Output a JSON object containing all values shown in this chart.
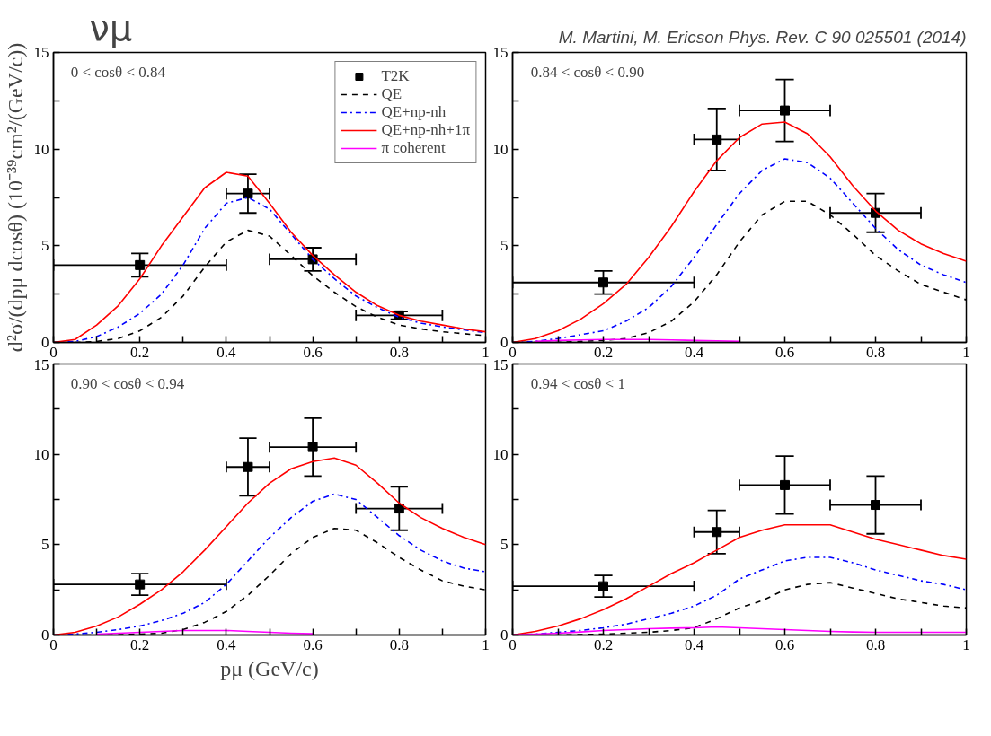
{
  "chart_data": [
    {
      "type": "line",
      "title": "νμ",
      "ylabel": "d²σ/(dpμ dcosθ) (10⁻³⁹cm²/(GeV/c))",
      "annotations": [
        "0 < cosθ < 0.84"
      ],
      "legend": "top right",
      "grid": false,
      "xlim": [
        0,
        1
      ],
      "ylim": [
        0,
        15
      ],
      "xticks": [
        0,
        {
          "value": 0.1,
          "label": null
        },
        0.2,
        {
          "value": 0.3,
          "label": null
        },
        0.4,
        {
          "value": 0.5,
          "label": null
        },
        0.6,
        {
          "value": 0.7,
          "label": null
        },
        0.8,
        {
          "value": 0.9,
          "label": null
        },
        1
      ],
      "yticks": [
        0,
        {
          "value": 2.5,
          "label": null
        },
        5,
        {
          "value": 7.5,
          "label": null
        },
        10,
        {
          "value": 12.5,
          "label": null
        },
        15
      ],
      "x": [
        0,
        0.05,
        0.1,
        0.15,
        0.2,
        0.25,
        0.3,
        0.35,
        0.4,
        0.45,
        0.5,
        0.55,
        0.6,
        0.65,
        0.7,
        0.75,
        0.8,
        0.85,
        0.9,
        0.95,
        1.0
      ],
      "series": [
        {
          "name": "T2K",
          "type": "scatter",
          "marker": "square",
          "color": "#000000",
          "x": [
            0.2,
            0.45,
            0.6,
            0.8
          ],
          "values": [
            4.0,
            7.7,
            4.3,
            1.4
          ],
          "errors": [
            0.6,
            1.0,
            0.6,
            0.2
          ],
          "xerrors": [
            [
              0,
              0.4
            ],
            [
              0.4,
              0.5
            ],
            [
              0.5,
              0.7
            ],
            [
              0.7,
              0.9
            ]
          ]
        },
        {
          "name": "QE",
          "type": "line",
          "line_style": "dashed",
          "color": "#000000",
          "values": [
            0,
            0,
            0.05,
            0.2,
            0.6,
            1.3,
            2.4,
            3.9,
            5.2,
            5.8,
            5.5,
            4.5,
            3.45,
            2.6,
            1.85,
            1.3,
            0.9,
            0.7,
            0.55,
            0.45,
            0.35
          ]
        },
        {
          "name": "QE+np-nh",
          "type": "line",
          "line_style": "dashdot",
          "color": "#0000ff",
          "values": [
            0,
            0.05,
            0.3,
            0.8,
            1.5,
            2.5,
            4.0,
            5.9,
            7.2,
            7.5,
            6.9,
            5.6,
            4.3,
            3.3,
            2.4,
            1.8,
            1.3,
            1.0,
            0.8,
            0.65,
            0.5
          ]
        },
        {
          "name": "QE+np-nh+1π",
          "type": "line",
          "line_style": "solid",
          "color": "#ff0000",
          "values": [
            0,
            0.15,
            0.9,
            1.9,
            3.3,
            5.0,
            6.5,
            8.0,
            8.8,
            8.6,
            7.2,
            5.7,
            4.5,
            3.5,
            2.6,
            1.9,
            1.4,
            1.1,
            0.9,
            0.7,
            0.55
          ]
        },
        {
          "name": "π coherent",
          "line_style": "solid",
          "color": "#ff00ff",
          "values": [
            null,
            null,
            null,
            null,
            null,
            null,
            null,
            null,
            null,
            null,
            null,
            null,
            null,
            null,
            null,
            null,
            null,
            null,
            null,
            null,
            null
          ]
        }
      ]
    },
    {
      "type": "line",
      "annotations": [
        "0.84 < cosθ < 0.90",
        "M. Martini, M. Ericson Phys. Rev. C 90 025501 (2014)"
      ],
      "grid": false,
      "xlim": [
        0,
        1
      ],
      "ylim": [
        0,
        15
      ],
      "xticks": [
        0,
        {
          "value": 0.1,
          "label": null
        },
        0.2,
        {
          "value": 0.3,
          "label": null
        },
        0.4,
        {
          "value": 0.5,
          "label": null
        },
        0.6,
        {
          "value": 0.7,
          "label": null
        },
        0.8,
        {
          "value": 0.9,
          "label": null
        },
        1
      ],
      "yticks": [
        0,
        {
          "value": 2.5,
          "label": null
        },
        5,
        {
          "value": 7.5,
          "label": null
        },
        10,
        {
          "value": 12.5,
          "label": null
        },
        15
      ],
      "x": [
        0,
        0.05,
        0.1,
        0.15,
        0.2,
        0.25,
        0.3,
        0.35,
        0.4,
        0.45,
        0.5,
        0.55,
        0.6,
        0.65,
        0.7,
        0.75,
        0.8,
        0.85,
        0.9,
        0.95,
        1.0
      ],
      "series": [
        {
          "type": "scatter",
          "marker": "square",
          "color": "#000000",
          "x": [
            0.2,
            0.45,
            0.6,
            0.8
          ],
          "values": [
            3.1,
            10.5,
            12.0,
            6.7
          ],
          "errors": [
            0.6,
            1.6,
            1.6,
            1.0
          ],
          "xerrors": [
            [
              0,
              0.4
            ],
            [
              0.4,
              0.5
            ],
            [
              0.5,
              0.7
            ],
            [
              0.7,
              0.9
            ]
          ]
        },
        {
          "type": "line",
          "line_style": "dashed",
          "color": "#000000",
          "values": [
            0,
            0,
            0,
            0.05,
            0.1,
            0.2,
            0.5,
            1.1,
            2.1,
            3.5,
            5.2,
            6.6,
            7.3,
            7.3,
            6.6,
            5.6,
            4.5,
            3.7,
            3.0,
            2.6,
            2.2
          ]
        },
        {
          "type": "line",
          "line_style": "dashdot",
          "color": "#0000ff",
          "values": [
            0,
            0.05,
            0.2,
            0.4,
            0.6,
            1.1,
            1.8,
            2.9,
            4.4,
            6.1,
            7.7,
            8.9,
            9.5,
            9.3,
            8.5,
            7.2,
            5.9,
            4.8,
            4.0,
            3.5,
            3.1
          ]
        },
        {
          "type": "line",
          "line_style": "solid",
          "color": "#ff0000",
          "values": [
            0,
            0.2,
            0.6,
            1.2,
            2.0,
            3.0,
            4.4,
            6.0,
            7.8,
            9.4,
            10.6,
            11.3,
            11.4,
            10.8,
            9.6,
            8.1,
            6.8,
            5.8,
            5.1,
            4.6,
            4.2
          ]
        },
        {
          "line_style": "solid",
          "color": "#ff00ff",
          "values": [
            null,
            0.05,
            0.1,
            0.13,
            0.15,
            0.15,
            0.15,
            0.13,
            0.1,
            0.08,
            0.05,
            null,
            null,
            null,
            null,
            null,
            null,
            null,
            null,
            null,
            null
          ]
        }
      ]
    },
    {
      "type": "line",
      "xlabel": "pμ (GeV/c)",
      "annotations": [
        "0.90 < cosθ < 0.94"
      ],
      "grid": false,
      "xlim": [
        0,
        1
      ],
      "ylim": [
        0,
        15
      ],
      "xticks": [
        0,
        {
          "value": 0.1,
          "label": null
        },
        0.2,
        {
          "value": 0.3,
          "label": null
        },
        0.4,
        {
          "value": 0.5,
          "label": null
        },
        0.6,
        {
          "value": 0.7,
          "label": null
        },
        0.8,
        {
          "value": 0.9,
          "label": null
        },
        1
      ],
      "yticks": [
        0,
        {
          "value": 2.5,
          "label": null
        },
        5,
        {
          "value": 7.5,
          "label": null
        },
        10,
        {
          "value": 12.5,
          "label": null
        },
        15
      ],
      "x": [
        0,
        0.05,
        0.1,
        0.15,
        0.2,
        0.25,
        0.3,
        0.35,
        0.4,
        0.45,
        0.5,
        0.55,
        0.6,
        0.65,
        0.7,
        0.75,
        0.8,
        0.85,
        0.9,
        0.95,
        1.0
      ],
      "series": [
        {
          "type": "scatter",
          "marker": "square",
          "color": "#000000",
          "x": [
            0.2,
            0.45,
            0.6,
            0.8
          ],
          "values": [
            2.8,
            9.3,
            10.4,
            7.0
          ],
          "errors": [
            0.6,
            1.6,
            1.6,
            1.2
          ],
          "xerrors": [
            [
              0,
              0.4
            ],
            [
              0.4,
              0.5
            ],
            [
              0.5,
              0.7
            ],
            [
              0.7,
              0.9
            ]
          ]
        },
        {
          "type": "line",
          "line_style": "dashed",
          "color": "#000000",
          "values": [
            0,
            0,
            0,
            0.02,
            0.05,
            0.1,
            0.3,
            0.7,
            1.3,
            2.2,
            3.3,
            4.5,
            5.4,
            5.9,
            5.8,
            5.1,
            4.3,
            3.6,
            3.0,
            2.7,
            2.5
          ]
        },
        {
          "type": "line",
          "line_style": "dashdot",
          "color": "#0000ff",
          "values": [
            0,
            0.05,
            0.15,
            0.3,
            0.5,
            0.8,
            1.2,
            1.8,
            2.8,
            4.1,
            5.4,
            6.5,
            7.4,
            7.8,
            7.5,
            6.5,
            5.5,
            4.7,
            4.1,
            3.7,
            3.5
          ]
        },
        {
          "type": "line",
          "line_style": "solid",
          "color": "#ff0000",
          "values": [
            0,
            0.15,
            0.5,
            1.0,
            1.7,
            2.5,
            3.5,
            4.7,
            6.0,
            7.3,
            8.4,
            9.2,
            9.6,
            9.8,
            9.4,
            8.4,
            7.3,
            6.5,
            5.9,
            5.4,
            5.0
          ]
        },
        {
          "line_style": "solid",
          "color": "#ff00ff",
          "values": [
            null,
            null,
            0.05,
            0.1,
            0.15,
            0.2,
            0.25,
            0.25,
            0.25,
            0.2,
            0.15,
            0.1,
            0.07,
            null,
            null,
            null,
            null,
            null,
            null,
            null,
            null
          ]
        }
      ]
    },
    {
      "type": "line",
      "annotations": [
        "0.94 < cosθ < 1"
      ],
      "grid": false,
      "xlim": [
        0,
        1
      ],
      "ylim": [
        0,
        15
      ],
      "xticks": [
        0,
        {
          "value": 0.1,
          "label": null
        },
        0.2,
        {
          "value": 0.3,
          "label": null
        },
        0.4,
        {
          "value": 0.5,
          "label": null
        },
        0.6,
        {
          "value": 0.7,
          "label": null
        },
        0.8,
        {
          "value": 0.9,
          "label": null
        },
        1
      ],
      "yticks": [
        0,
        {
          "value": 2.5,
          "label": null
        },
        5,
        {
          "value": 7.5,
          "label": null
        },
        10,
        {
          "value": 12.5,
          "label": null
        },
        15
      ],
      "x": [
        0,
        0.05,
        0.1,
        0.15,
        0.2,
        0.25,
        0.3,
        0.35,
        0.4,
        0.45,
        0.5,
        0.55,
        0.6,
        0.65,
        0.7,
        0.75,
        0.8,
        0.85,
        0.9,
        0.95,
        1.0
      ],
      "series": [
        {
          "type": "scatter",
          "marker": "square",
          "color": "#000000",
          "x": [
            0.2,
            0.45,
            0.6,
            0.8
          ],
          "values": [
            2.7,
            5.7,
            8.3,
            7.2
          ],
          "errors": [
            0.6,
            1.2,
            1.6,
            1.6
          ],
          "xerrors": [
            [
              0,
              0.4
            ],
            [
              0.4,
              0.5
            ],
            [
              0.5,
              0.7
            ],
            [
              0.7,
              0.9
            ]
          ]
        },
        {
          "type": "line",
          "line_style": "dashed",
          "color": "#000000",
          "values": [
            0,
            0,
            0,
            0.02,
            0.05,
            0.1,
            0.15,
            0.25,
            0.4,
            0.9,
            1.5,
            1.9,
            2.5,
            2.8,
            2.9,
            2.6,
            2.3,
            2.0,
            1.8,
            1.6,
            1.5
          ]
        },
        {
          "type": "line",
          "line_style": "dashdot",
          "color": "#0000ff",
          "values": [
            0,
            0.05,
            0.15,
            0.25,
            0.4,
            0.6,
            0.9,
            1.2,
            1.6,
            2.2,
            3.1,
            3.6,
            4.1,
            4.3,
            4.3,
            4.0,
            3.6,
            3.3,
            3.0,
            2.8,
            2.5
          ]
        },
        {
          "type": "line",
          "line_style": "solid",
          "color": "#ff0000",
          "values": [
            0,
            0.2,
            0.5,
            0.9,
            1.4,
            2.0,
            2.7,
            3.4,
            4.0,
            4.7,
            5.4,
            5.8,
            6.1,
            6.1,
            6.1,
            5.7,
            5.3,
            5.0,
            4.7,
            4.4,
            4.2
          ]
        },
        {
          "type": "line",
          "line_style": "solid",
          "color": "#ff00ff",
          "values": [
            0,
            0.05,
            0.1,
            0.17,
            0.25,
            0.3,
            0.35,
            0.38,
            0.4,
            0.45,
            0.4,
            0.35,
            0.3,
            0.25,
            0.2,
            0.17,
            0.15,
            0.15,
            0.15,
            0.15,
            0.15
          ]
        }
      ]
    }
  ]
}
